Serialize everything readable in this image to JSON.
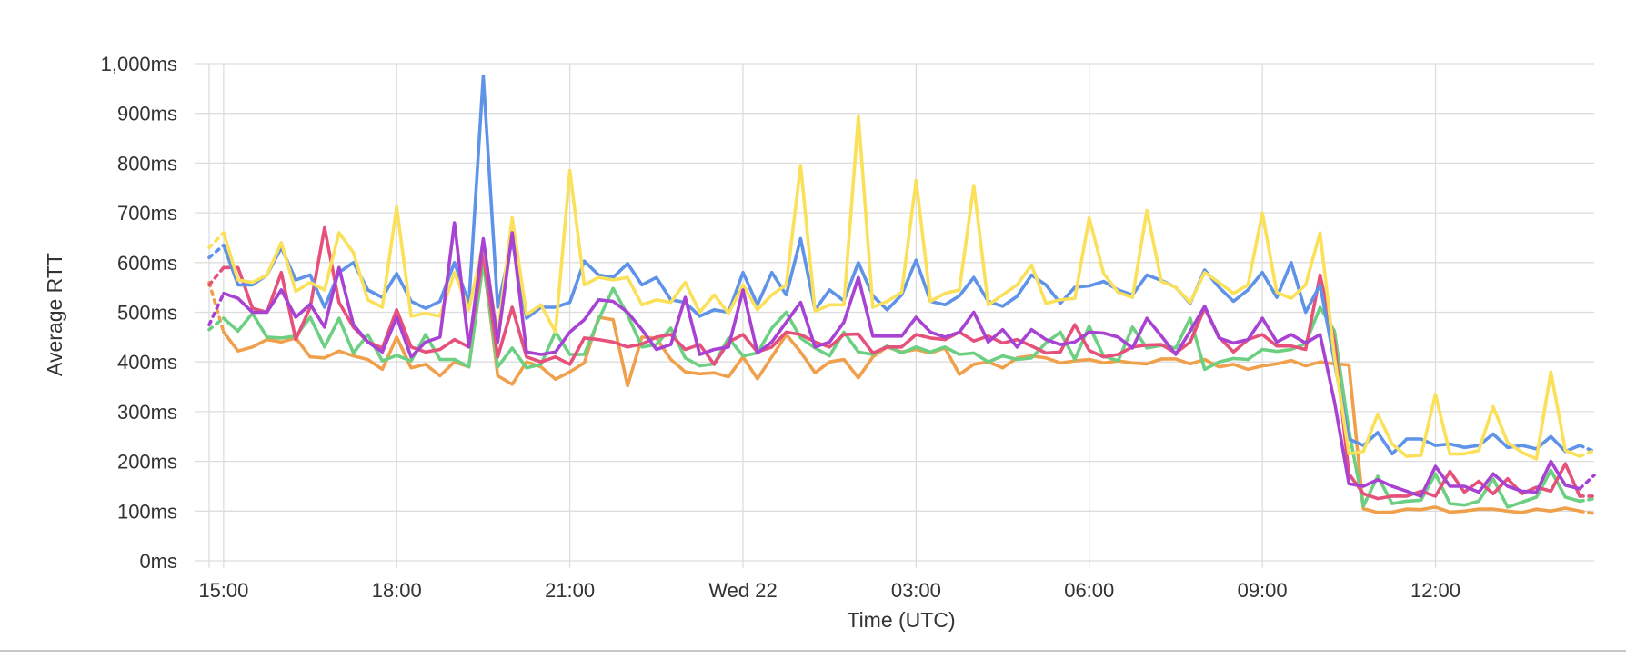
{
  "chart_data": {
    "type": "line",
    "title": "",
    "xlabel": "Time (UTC)",
    "ylabel": "Average RTT",
    "y_unit": "ms",
    "ylim": [
      0,
      1000
    ],
    "y_ticks": [
      0,
      100,
      200,
      300,
      400,
      500,
      600,
      700,
      800,
      900,
      1000
    ],
    "y_tick_labels": [
      "0ms",
      "100ms",
      "200ms",
      "300ms",
      "400ms",
      "500ms",
      "600ms",
      "700ms",
      "800ms",
      "900ms",
      "1,000ms"
    ],
    "x_tick_labels": [
      "15:00",
      "18:00",
      "21:00",
      "Wed 22",
      "03:00",
      "06:00",
      "09:00",
      "12:00"
    ],
    "xlim": [
      "2024-05-21 14:45",
      "2024-05-22 14:45"
    ],
    "x_ticks": [
      "2024-05-21 15:00",
      "2024-05-21 18:00",
      "2024-05-21 21:00",
      "2024-05-22 00:00",
      "2024-05-22 03:00",
      "2024-05-22 06:00",
      "2024-05-22 09:00",
      "2024-05-22 12:00"
    ],
    "grid": true,
    "legend": "none",
    "x": [
      "2024-05-21 14:45",
      "2024-05-21 15:00",
      "2024-05-21 15:15",
      "2024-05-21 15:30",
      "2024-05-21 15:45",
      "2024-05-21 16:00",
      "2024-05-21 16:15",
      "2024-05-21 16:30",
      "2024-05-21 16:45",
      "2024-05-21 17:00",
      "2024-05-21 17:15",
      "2024-05-21 17:30",
      "2024-05-21 17:45",
      "2024-05-21 18:00",
      "2024-05-21 18:15",
      "2024-05-21 18:30",
      "2024-05-21 18:45",
      "2024-05-21 19:00",
      "2024-05-21 19:15",
      "2024-05-21 19:30",
      "2024-05-21 19:45",
      "2024-05-21 20:00",
      "2024-05-21 20:15",
      "2024-05-21 20:30",
      "2024-05-21 20:45",
      "2024-05-21 21:00",
      "2024-05-21 21:15",
      "2024-05-21 21:30",
      "2024-05-21 21:45",
      "2024-05-21 22:00",
      "2024-05-21 22:15",
      "2024-05-21 22:30",
      "2024-05-21 22:45",
      "2024-05-21 23:00",
      "2024-05-21 23:15",
      "2024-05-21 23:30",
      "2024-05-21 23:45",
      "2024-05-22 00:00",
      "2024-05-22 00:15",
      "2024-05-22 00:30",
      "2024-05-22 00:45",
      "2024-05-22 01:00",
      "2024-05-22 01:15",
      "2024-05-22 01:30",
      "2024-05-22 01:45",
      "2024-05-22 02:00",
      "2024-05-22 02:15",
      "2024-05-22 02:30",
      "2024-05-22 02:45",
      "2024-05-22 03:00",
      "2024-05-22 03:15",
      "2024-05-22 03:30",
      "2024-05-22 03:45",
      "2024-05-22 04:00",
      "2024-05-22 04:15",
      "2024-05-22 04:30",
      "2024-05-22 04:45",
      "2024-05-22 05:00",
      "2024-05-22 05:15",
      "2024-05-22 05:30",
      "2024-05-22 05:45",
      "2024-05-22 06:00",
      "2024-05-22 06:15",
      "2024-05-22 06:30",
      "2024-05-22 06:45",
      "2024-05-22 07:00",
      "2024-05-22 07:15",
      "2024-05-22 07:30",
      "2024-05-22 07:45",
      "2024-05-22 08:00",
      "2024-05-22 08:15",
      "2024-05-22 08:30",
      "2024-05-22 08:45",
      "2024-05-22 09:00",
      "2024-05-22 09:15",
      "2024-05-22 09:30",
      "2024-05-22 09:45",
      "2024-05-22 10:00",
      "2024-05-22 10:15",
      "2024-05-22 10:30",
      "2024-05-22 10:45",
      "2024-05-22 11:00",
      "2024-05-22 11:15",
      "2024-05-22 11:30",
      "2024-05-22 11:45",
      "2024-05-22 12:00",
      "2024-05-22 12:15",
      "2024-05-22 12:30",
      "2024-05-22 12:45",
      "2024-05-22 13:00",
      "2024-05-22 13:15",
      "2024-05-22 13:30",
      "2024-05-22 13:45",
      "2024-05-22 14:00",
      "2024-05-22 14:15",
      "2024-05-22 14:30",
      "2024-05-22 14:45"
    ],
    "series": [
      {
        "color": "#f0a04b",
        "values": [
          560,
          460,
          422,
          430,
          445,
          440,
          448,
          410,
          408,
          422,
          412,
          405,
          385,
          450,
          388,
          395,
          372,
          400,
          390,
          610,
          372,
          355,
          400,
          390,
          365,
          380,
          398,
          490,
          485,
          352,
          450,
          448,
          405,
          380,
          376,
          378,
          370,
          410,
          366,
          410,
          455,
          420,
          378,
          400,
          405,
          368,
          410,
          430,
          420,
          425,
          418,
          428,
          375,
          395,
          400,
          388,
          408,
          412,
          408,
          398,
          402,
          405,
          398,
          402,
          398,
          396,
          406,
          406,
          396,
          405,
          390,
          395,
          385,
          392,
          396,
          403,
          392,
          400,
          396,
          394,
          105,
          97,
          98,
          104,
          103,
          108,
          98,
          100,
          104,
          104,
          100,
          97,
          104,
          100,
          106,
          100,
          95
        ]
      },
      {
        "color": "#6ccf82",
        "values": [
          465,
          488,
          462,
          498,
          450,
          448,
          452,
          490,
          430,
          488,
          418,
          455,
          402,
          413,
          402,
          455,
          405,
          405,
          390,
          600,
          390,
          428,
          388,
          395,
          460,
          415,
          415,
          485,
          548,
          495,
          430,
          435,
          468,
          408,
          392,
          396,
          448,
          412,
          418,
          468,
          500,
          448,
          428,
          412,
          460,
          420,
          415,
          432,
          418,
          430,
          420,
          430,
          415,
          418,
          400,
          412,
          405,
          408,
          438,
          460,
          405,
          472,
          412,
          402,
          470,
          428,
          433,
          428,
          488,
          385,
          400,
          407,
          405,
          425,
          421,
          425,
          437,
          510,
          462,
          262,
          110,
          170,
          115,
          120,
          122,
          175,
          115,
          112,
          120,
          165,
          108,
          118,
          128,
          182,
          128,
          120,
          125
        ]
      },
      {
        "color": "#e5517a",
        "values": [
          555,
          590,
          590,
          508,
          500,
          580,
          445,
          510,
          670,
          520,
          470,
          440,
          428,
          505,
          430,
          420,
          425,
          445,
          430,
          620,
          410,
          510,
          410,
          400,
          410,
          395,
          448,
          445,
          440,
          430,
          436,
          450,
          455,
          425,
          435,
          395,
          440,
          455,
          420,
          430,
          460,
          455,
          440,
          430,
          455,
          456,
          418,
          430,
          430,
          455,
          448,
          445,
          460,
          442,
          452,
          438,
          445,
          432,
          418,
          420,
          475,
          423,
          410,
          415,
          430,
          434,
          435,
          418,
          440,
          508,
          450,
          420,
          445,
          455,
          432,
          432,
          425,
          575,
          440,
          175,
          135,
          125,
          130,
          130,
          140,
          130,
          180,
          138,
          160,
          135,
          165,
          135,
          148,
          140,
          195,
          130,
          130
        ]
      },
      {
        "color": "#5f93e8",
        "values": [
          610,
          635,
          555,
          555,
          575,
          630,
          565,
          575,
          510,
          580,
          600,
          545,
          530,
          578,
          522,
          508,
          522,
          600,
          518,
          975,
          510,
          645,
          488,
          510,
          510,
          520,
          603,
          575,
          570,
          598,
          555,
          570,
          525,
          520,
          492,
          505,
          500,
          580,
          515,
          580,
          535,
          648,
          505,
          545,
          523,
          600,
          533,
          505,
          535,
          605,
          522,
          515,
          533,
          570,
          522,
          512,
          532,
          575,
          555,
          518,
          550,
          553,
          562,
          545,
          535,
          575,
          564,
          550,
          518,
          585,
          550,
          522,
          545,
          580,
          530,
          600,
          500,
          555,
          400,
          245,
          232,
          258,
          215,
          245,
          245,
          232,
          235,
          228,
          232,
          255,
          228,
          232,
          225,
          250,
          220,
          232,
          220
        ]
      },
      {
        "color": "#fbe05a",
        "values": [
          630,
          660,
          565,
          560,
          575,
          640,
          542,
          560,
          545,
          660,
          620,
          525,
          510,
          712,
          492,
          498,
          492,
          580,
          505,
          640,
          455,
          690,
          495,
          515,
          460,
          785,
          555,
          570,
          565,
          570,
          515,
          525,
          520,
          560,
          500,
          535,
          498,
          555,
          505,
          535,
          555,
          795,
          502,
          515,
          515,
          895,
          510,
          522,
          540,
          765,
          522,
          538,
          545,
          755,
          515,
          535,
          555,
          595,
          518,
          525,
          528,
          690,
          578,
          540,
          530,
          705,
          562,
          550,
          520,
          580,
          560,
          538,
          555,
          700,
          540,
          528,
          555,
          660,
          410,
          215,
          220,
          295,
          235,
          210,
          212,
          335,
          215,
          215,
          222,
          310,
          238,
          218,
          205,
          380,
          222,
          210,
          222
        ]
      },
      {
        "color": "#a742d3",
        "values": [
          475,
          538,
          528,
          500,
          500,
          545,
          490,
          516,
          470,
          590,
          475,
          440,
          420,
          490,
          410,
          440,
          450,
          680,
          430,
          648,
          440,
          660,
          420,
          415,
          420,
          460,
          485,
          525,
          522,
          500,
          465,
          425,
          435,
          530,
          415,
          425,
          430,
          545,
          418,
          440,
          480,
          520,
          430,
          440,
          480,
          570,
          452,
          452,
          452,
          490,
          460,
          450,
          460,
          500,
          440,
          465,
          430,
          465,
          445,
          435,
          440,
          460,
          458,
          450,
          428,
          488,
          452,
          415,
          462,
          512,
          448,
          438,
          445,
          488,
          440,
          455,
          438,
          455,
          320,
          155,
          150,
          163,
          150,
          140,
          130,
          190,
          150,
          150,
          138,
          175,
          150,
          140,
          138,
          200,
          152,
          145,
          172
        ]
      }
    ]
  }
}
